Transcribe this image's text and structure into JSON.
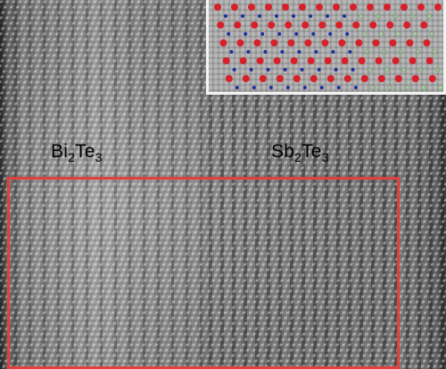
{
  "image": {
    "labels": {
      "left": {
        "base": "Bi",
        "sub1": "2",
        "mid": "Te",
        "sub2": "3"
      },
      "right": {
        "base": "Sb",
        "sub1": "2",
        "mid": "Te",
        "sub2": "3"
      }
    },
    "inset": {
      "atom_colors": {
        "te": "#d6202a",
        "bi": "#1b2f9e",
        "sb": "#5fae55"
      }
    },
    "box_color": "#e0413f"
  }
}
